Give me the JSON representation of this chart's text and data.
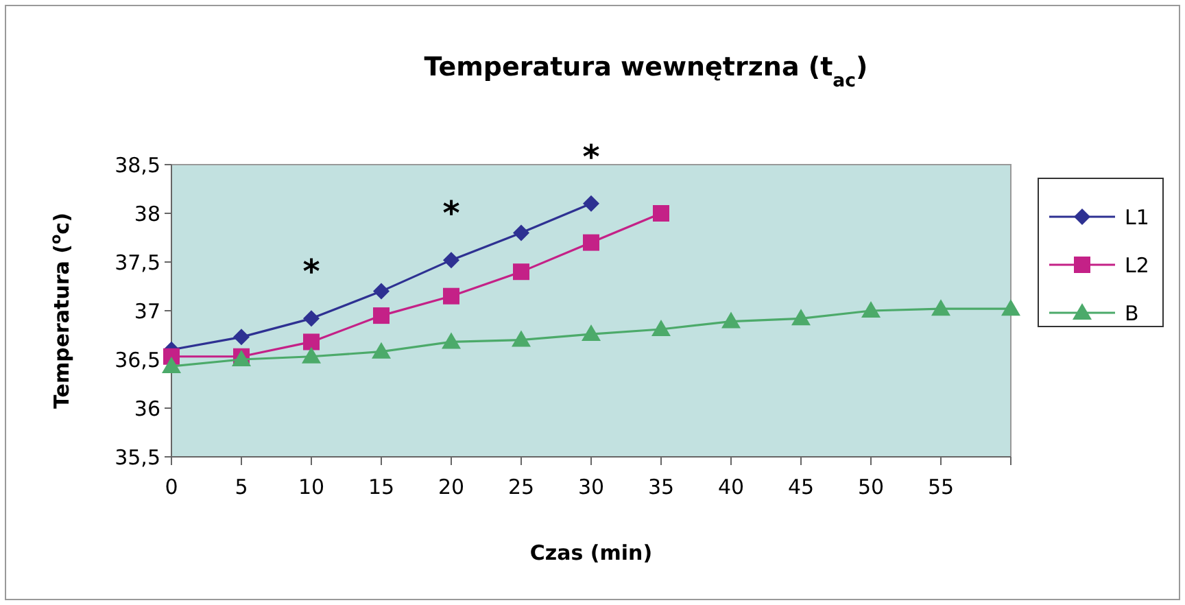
{
  "chart_data": {
    "type": "line",
    "title": "Temperatura wewnętrzna (t$_{ac}$)",
    "xlabel": "Czas (min)",
    "ylabel": "Temperatura ($^{o}$c)",
    "series": [
      {
        "name": "L1",
        "color": "#2e3192",
        "marker": "diamond",
        "x": [
          0,
          5,
          10,
          15,
          20,
          25,
          30
        ],
        "values": [
          36.6,
          36.73,
          36.92,
          37.2,
          37.52,
          37.8,
          38.1
        ]
      },
      {
        "name": "L2",
        "color": "#c42187",
        "marker": "square",
        "x": [
          0,
          5,
          10,
          15,
          20,
          25,
          30,
          35
        ],
        "values": [
          36.53,
          36.53,
          36.68,
          36.95,
          37.15,
          37.4,
          37.7,
          38.0
        ]
      },
      {
        "name": "B",
        "color": "#4caa6a",
        "marker": "triangle",
        "x": [
          0,
          5,
          10,
          15,
          20,
          25,
          30,
          35,
          40,
          45,
          50,
          55,
          60
        ],
        "values": [
          36.43,
          36.5,
          36.53,
          36.58,
          36.68,
          36.7,
          36.76,
          36.81,
          36.89,
          36.92,
          37.0,
          37.02,
          37.02
        ]
      }
    ],
    "xlim": [
      0,
      60
    ],
    "xticks": [
      0,
      5,
      10,
      15,
      20,
      25,
      30,
      35,
      40,
      45,
      50,
      55,
      {
        "value": 60,
        "label": null
      }
    ],
    "ylim": [
      35.5,
      38.5
    ],
    "yticks": [
      {
        "value": 35.5,
        "label": "35,5"
      },
      36,
      {
        "value": 36.5,
        "label": "36,5"
      },
      37,
      {
        "value": 37.5,
        "label": "37,5"
      },
      38,
      {
        "value": 38.5,
        "label": "38,5"
      }
    ],
    "annotations": [
      "*",
      "*",
      "*"
    ],
    "grid": false,
    "legend": "right",
    "line_style": "solid"
  }
}
